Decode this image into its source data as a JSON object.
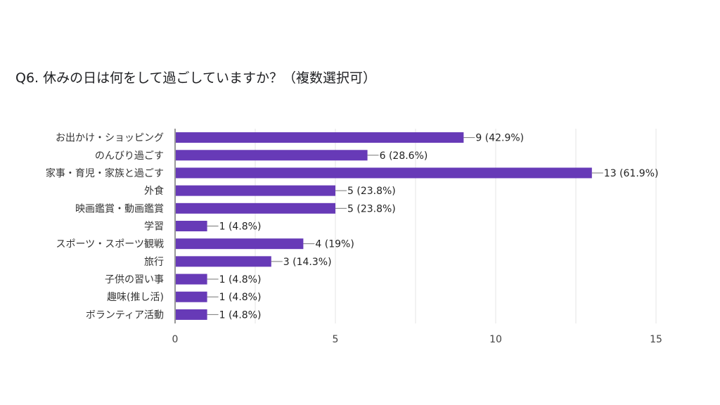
{
  "chart_data": {
    "type": "bar",
    "orientation": "horizontal",
    "title": "Q6. 休みの日は何をして過ごしていますか？（複数選択可）",
    "categories": [
      "お出かけ・ショッピング",
      "のんびり過ごす",
      "家事・育児・家族と過ごす",
      "外食",
      "映画鑑賞・動画鑑賞",
      "学習",
      "スポーツ・スポーツ観戦",
      "旅行",
      "子供の習い事",
      "趣味(推し活)",
      "ボランティア活動"
    ],
    "values": [
      9,
      6,
      13,
      5,
      5,
      1,
      4,
      3,
      1,
      1,
      1
    ],
    "data_labels": [
      "9 (42.9%)",
      "6 (28.6%)",
      "13 (61.9%)",
      "5 (23.8%)",
      "5 (23.8%)",
      "1 (4.8%)",
      "4 (19%)",
      "3 (14.3%)",
      "1 (4.8%)",
      "1 (4.8%)",
      "1 (4.8%)"
    ],
    "xlim": [
      0,
      15
    ],
    "x_ticks": [
      "0",
      "5",
      "10",
      "15"
    ],
    "grid": true,
    "bar_color": "#673ab7"
  }
}
